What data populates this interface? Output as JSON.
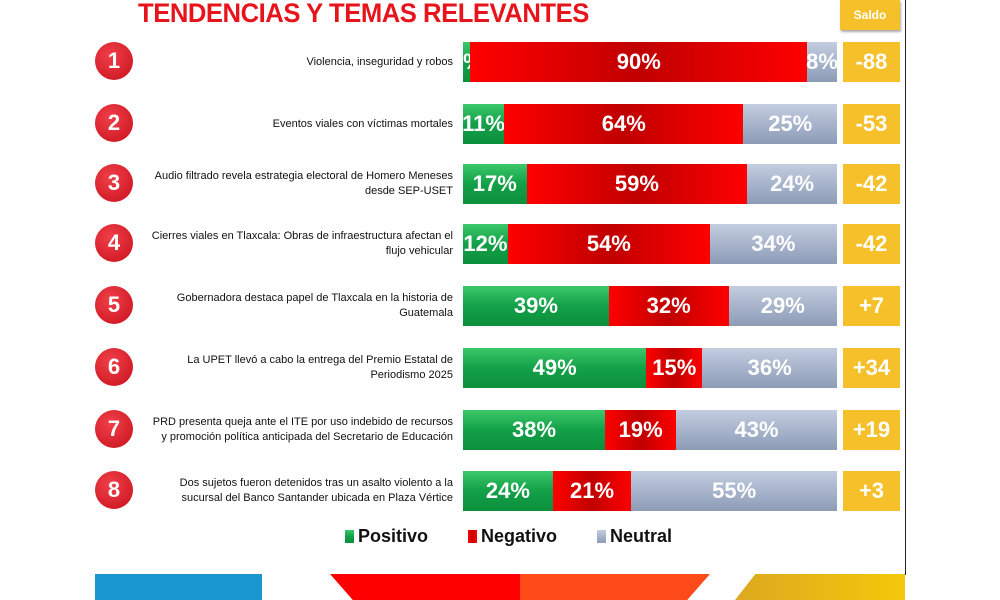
{
  "chart_data": {
    "type": "bar",
    "stacked": true,
    "orientation": "horizontal",
    "title": "TENDENCIAS Y TEMAS RELEVANTES",
    "saldo_header": "Saldo",
    "categories": [
      "Violencia, inseguridad y robos",
      "Eventos viales con víctimas mortales",
      "Audio filtrado revela estrategia electoral de Homero Meneses desde SEP-USET",
      "Cierres viales en Tlaxcala: Obras de infraestructura afectan el flujo vehicular",
      "Gobernadora destaca papel de Tlaxcala en la historia de Guatemala",
      "La UPET llevó a cabo la entrega del Premio Estatal de Periodismo 2025",
      "PRD presenta queja ante el ITE por uso indebido de recursos y promoción política anticipada del Secretario de Educación",
      "Dos sujetos fueron detenidos tras un asalto violento a la sucursal del Banco Santander ubicada en Plaza Vértice"
    ],
    "ranks": [
      "1",
      "2",
      "3",
      "4",
      "5",
      "6",
      "7",
      "8"
    ],
    "series": [
      {
        "name": "Positivo",
        "color": "#12a048",
        "values": [
          2,
          11,
          17,
          12,
          39,
          49,
          38,
          24
        ]
      },
      {
        "name": "Negativo",
        "color": "#e00000",
        "values": [
          90,
          64,
          59,
          54,
          32,
          15,
          19,
          21
        ]
      },
      {
        "name": "Neutral",
        "color": "#a7b4cc",
        "values": [
          8,
          25,
          24,
          34,
          29,
          36,
          43,
          55
        ]
      }
    ],
    "saldo": [
      "-88",
      "-53",
      "-42",
      "-42",
      "+7",
      "+34",
      "+19",
      "+3"
    ],
    "legend": "bottom"
  }
}
